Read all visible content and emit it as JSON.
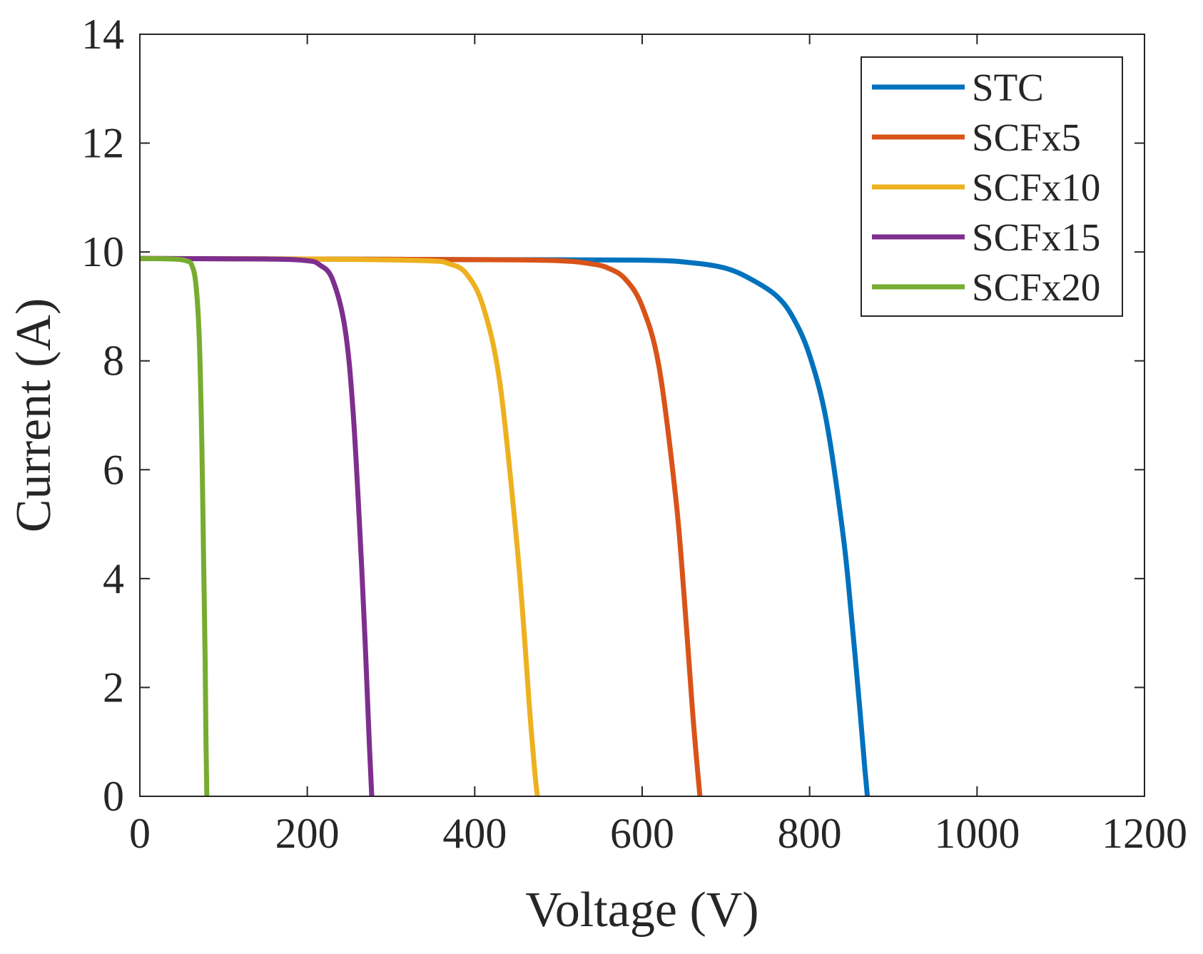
{
  "chart_data": {
    "type": "line",
    "title": "",
    "xlabel": "Voltage (V)",
    "ylabel": "Current (A)",
    "xlim": [
      0,
      1200
    ],
    "ylim": [
      0,
      14
    ],
    "xticks": [
      0,
      200,
      400,
      600,
      800,
      1000,
      1200
    ],
    "yticks": [
      0,
      2,
      4,
      6,
      8,
      10,
      12,
      14
    ],
    "grid": false,
    "legend_position": "top-right",
    "series": [
      {
        "name": "STC",
        "color": "#0072BD",
        "x": [
          0,
          200,
          400,
          600,
          660,
          700,
          730,
          760,
          780,
          800,
          820,
          840,
          850,
          860,
          866,
          869
        ],
        "y": [
          9.88,
          9.87,
          9.86,
          9.85,
          9.8,
          9.7,
          9.5,
          9.2,
          8.8,
          8.1,
          6.9,
          4.8,
          3.3,
          1.6,
          0.5,
          0
        ]
      },
      {
        "name": "SCFx5",
        "color": "#D95319",
        "x": [
          0,
          200,
          400,
          500,
          540,
          560,
          580,
          600,
          620,
          640,
          650,
          660,
          666,
          669
        ],
        "y": [
          9.88,
          9.87,
          9.86,
          9.84,
          9.78,
          9.7,
          9.5,
          9.0,
          7.9,
          5.5,
          3.7,
          1.6,
          0.5,
          0
        ]
      },
      {
        "name": "SCFx10",
        "color": "#EDB120",
        "x": [
          0,
          200,
          340,
          370,
          390,
          410,
          430,
          450,
          460,
          466,
          472,
          475
        ],
        "y": [
          9.88,
          9.87,
          9.84,
          9.78,
          9.6,
          9.0,
          7.6,
          4.7,
          2.8,
          1.5,
          0.4,
          0
        ]
      },
      {
        "name": "SCFx15",
        "color": "#7E2F8E",
        "x": [
          0,
          150,
          200,
          215,
          230,
          245,
          255,
          265,
          270,
          274,
          277
        ],
        "y": [
          9.88,
          9.87,
          9.84,
          9.76,
          9.5,
          8.6,
          7.0,
          4.2,
          2.5,
          1.0,
          0
        ]
      },
      {
        "name": "SCFx20",
        "color": "#77AC30",
        "x": [
          0,
          40,
          55,
          62,
          67,
          71,
          74,
          76,
          78,
          79,
          80
        ],
        "y": [
          9.88,
          9.87,
          9.84,
          9.76,
          9.4,
          8.4,
          6.5,
          4.5,
          2.5,
          1.0,
          0
        ]
      }
    ]
  }
}
